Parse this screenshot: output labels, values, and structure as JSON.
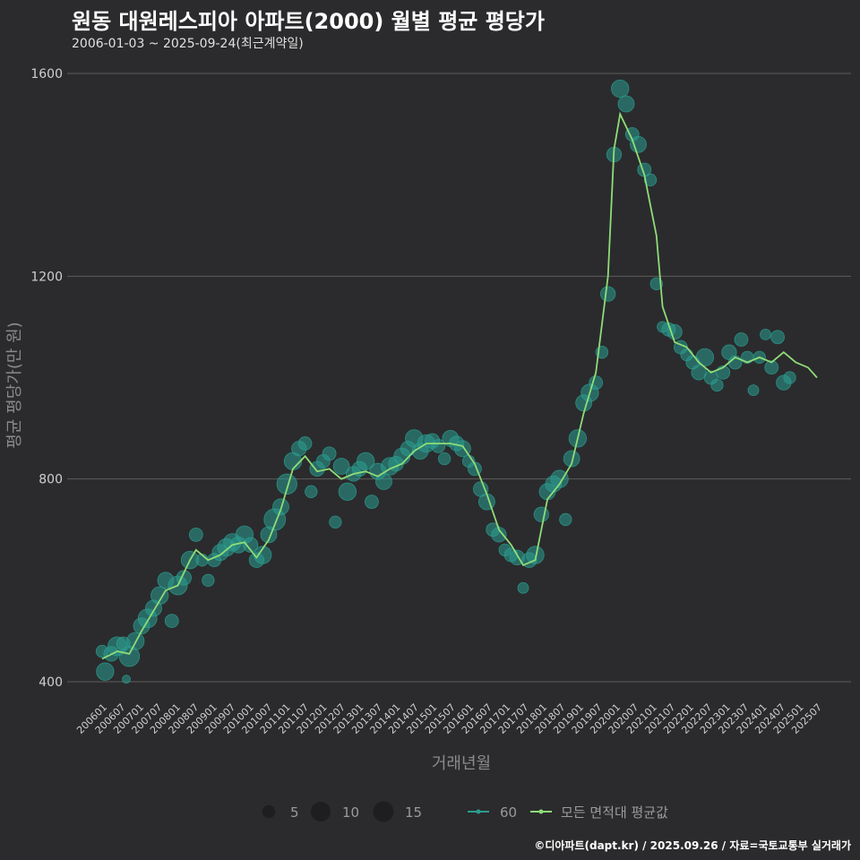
{
  "title": "원동 대원레스피아 아파트(2000) 월별 평균 평당가",
  "subtitle": "2006-01-03 ~ 2025-09-24(최근계약일)",
  "footer": "©디아파트(dapt.kr) / 2025.09.26 / 자료=국토교통부 실거래가",
  "colors": {
    "background": "#2b2b2d",
    "grid": "#5c5c5c",
    "bubble": "#2a9d8f",
    "line": "#8fdc78"
  },
  "chart_data": {
    "type": "scatter",
    "xlabel": "거래년월",
    "ylabel": "평균 평당가(만 원)",
    "ylim": [
      370,
      1640
    ],
    "yticks": [
      400,
      800,
      1200,
      1600
    ],
    "x_tick_labels": [
      "200601",
      "200607",
      "200701",
      "200707",
      "200801",
      "200807",
      "200901",
      "200907",
      "201001",
      "201007",
      "201101",
      "201107",
      "201201",
      "201207",
      "201301",
      "201307",
      "201401",
      "201407",
      "201501",
      "201507",
      "201601",
      "201607",
      "201701",
      "201707",
      "201801",
      "201807",
      "201901",
      "201907",
      "202001",
      "202007",
      "202101",
      "202107",
      "202201",
      "202207",
      "202301",
      "202307",
      "202401",
      "202407",
      "202501",
      "202507"
    ],
    "grid": "horizontal",
    "legend": {
      "size_title": "",
      "sizes": [
        5,
        10,
        15
      ],
      "series_labels": [
        "60",
        "모든 면적대 평균값"
      ],
      "placement": "bottom"
    },
    "series": [
      {
        "name": "60",
        "type": "bubble",
        "points": [
          [
            "2006-01",
            460,
            5
          ],
          [
            "2006-02",
            420,
            9
          ],
          [
            "2006-04",
            455,
            7
          ],
          [
            "2006-06",
            470,
            10
          ],
          [
            "2006-08",
            475,
            6
          ],
          [
            "2006-09",
            405,
            2
          ],
          [
            "2006-10",
            450,
            11
          ],
          [
            "2006-12",
            480,
            9
          ],
          [
            "2007-02",
            510,
            8
          ],
          [
            "2007-04",
            525,
            10
          ],
          [
            "2007-06",
            545,
            8
          ],
          [
            "2007-08",
            570,
            9
          ],
          [
            "2007-10",
            600,
            8
          ],
          [
            "2007-12",
            520,
            6
          ],
          [
            "2008-02",
            590,
            10
          ],
          [
            "2008-04",
            605,
            7
          ],
          [
            "2008-06",
            640,
            9
          ],
          [
            "2008-08",
            690,
            6
          ],
          [
            "2008-10",
            640,
            5
          ],
          [
            "2008-12",
            600,
            5
          ],
          [
            "2009-02",
            640,
            6
          ],
          [
            "2009-04",
            655,
            8
          ],
          [
            "2009-06",
            665,
            9
          ],
          [
            "2009-08",
            675,
            9
          ],
          [
            "2009-10",
            670,
            8
          ],
          [
            "2009-12",
            690,
            9
          ],
          [
            "2010-02",
            670,
            7
          ],
          [
            "2010-04",
            640,
            7
          ],
          [
            "2010-06",
            650,
            9
          ],
          [
            "2010-08",
            690,
            8
          ],
          [
            "2010-10",
            720,
            12
          ],
          [
            "2010-12",
            745,
            8
          ],
          [
            "2011-02",
            790,
            11
          ],
          [
            "2011-04",
            835,
            9
          ],
          [
            "2011-06",
            860,
            7
          ],
          [
            "2011-08",
            870,
            6
          ],
          [
            "2011-10",
            775,
            5
          ],
          [
            "2011-12",
            820,
            7
          ],
          [
            "2012-02",
            835,
            6
          ],
          [
            "2012-04",
            850,
            6
          ],
          [
            "2012-06",
            715,
            5
          ],
          [
            "2012-08",
            825,
            8
          ],
          [
            "2012-10",
            775,
            9
          ],
          [
            "2012-12",
            810,
            7
          ],
          [
            "2013-02",
            820,
            7
          ],
          [
            "2013-04",
            835,
            9
          ],
          [
            "2013-06",
            755,
            6
          ],
          [
            "2013-08",
            815,
            8
          ],
          [
            "2013-10",
            795,
            8
          ],
          [
            "2013-12",
            825,
            9
          ],
          [
            "2014-02",
            830,
            7
          ],
          [
            "2014-04",
            845,
            8
          ],
          [
            "2014-06",
            860,
            7
          ],
          [
            "2014-08",
            880,
            9
          ],
          [
            "2014-10",
            855,
            8
          ],
          [
            "2014-12",
            870,
            9
          ],
          [
            "2015-02",
            875,
            7
          ],
          [
            "2015-04",
            865,
            6
          ],
          [
            "2015-06",
            840,
            5
          ],
          [
            "2015-08",
            880,
            8
          ],
          [
            "2015-10",
            870,
            7
          ],
          [
            "2015-12",
            860,
            8
          ],
          [
            "2016-02",
            835,
            5
          ],
          [
            "2016-04",
            820,
            6
          ],
          [
            "2016-06",
            780,
            7
          ],
          [
            "2016-08",
            755,
            8
          ],
          [
            "2016-10",
            700,
            6
          ],
          [
            "2016-12",
            690,
            7
          ],
          [
            "2017-02",
            660,
            5
          ],
          [
            "2017-04",
            650,
            6
          ],
          [
            "2017-06",
            645,
            7
          ],
          [
            "2017-08",
            585,
            4
          ],
          [
            "2017-10",
            640,
            7
          ],
          [
            "2017-12",
            650,
            9
          ],
          [
            "2018-02",
            730,
            7
          ],
          [
            "2018-04",
            775,
            8
          ],
          [
            "2018-06",
            790,
            8
          ],
          [
            "2018-08",
            800,
            9
          ],
          [
            "2018-10",
            720,
            5
          ],
          [
            "2018-12",
            840,
            8
          ],
          [
            "2019-02",
            880,
            9
          ],
          [
            "2019-04",
            950,
            8
          ],
          [
            "2019-06",
            970,
            9
          ],
          [
            "2019-08",
            990,
            6
          ],
          [
            "2019-10",
            1050,
            5
          ],
          [
            "2019-12",
            1165,
            7
          ],
          [
            "2020-02",
            1440,
            7
          ],
          [
            "2020-04",
            1570,
            9
          ],
          [
            "2020-06",
            1540,
            8
          ],
          [
            "2020-08",
            1480,
            6
          ],
          [
            "2020-10",
            1460,
            8
          ],
          [
            "2020-12",
            1410,
            6
          ],
          [
            "2021-02",
            1390,
            5
          ],
          [
            "2021-04",
            1185,
            5
          ],
          [
            "2021-06",
            1100,
            4
          ],
          [
            "2021-08",
            1095,
            6
          ],
          [
            "2021-10",
            1090,
            7
          ],
          [
            "2021-12",
            1060,
            6
          ],
          [
            "2022-02",
            1045,
            5
          ],
          [
            "2022-04",
            1030,
            6
          ],
          [
            "2022-06",
            1010,
            7
          ],
          [
            "2022-08",
            1040,
            9
          ],
          [
            "2022-10",
            1000,
            6
          ],
          [
            "2022-12",
            985,
            5
          ],
          [
            "2023-02",
            1010,
            6
          ],
          [
            "2023-04",
            1050,
            7
          ],
          [
            "2023-06",
            1030,
            6
          ],
          [
            "2023-08",
            1075,
            6
          ],
          [
            "2023-10",
            1040,
            5
          ],
          [
            "2023-12",
            975,
            4
          ],
          [
            "2024-02",
            1040,
            5
          ],
          [
            "2024-04",
            1085,
            4
          ],
          [
            "2024-06",
            1020,
            6
          ],
          [
            "2024-08",
            1080,
            6
          ],
          [
            "2024-10",
            990,
            7
          ],
          [
            "2024-12",
            1000,
            5
          ]
        ]
      },
      {
        "name": "모든 면적대 평균값",
        "type": "line",
        "points": [
          [
            "2006-01",
            445
          ],
          [
            "2006-06",
            460
          ],
          [
            "2006-10",
            455
          ],
          [
            "2007-02",
            500
          ],
          [
            "2007-06",
            540
          ],
          [
            "2007-10",
            580
          ],
          [
            "2008-02",
            590
          ],
          [
            "2008-06",
            640
          ],
          [
            "2008-08",
            660
          ],
          [
            "2008-12",
            640
          ],
          [
            "2009-04",
            650
          ],
          [
            "2009-08",
            670
          ],
          [
            "2009-12",
            675
          ],
          [
            "2010-04",
            645
          ],
          [
            "2010-08",
            680
          ],
          [
            "2010-12",
            740
          ],
          [
            "2011-04",
            820
          ],
          [
            "2011-08",
            845
          ],
          [
            "2011-12",
            815
          ],
          [
            "2012-04",
            820
          ],
          [
            "2012-08",
            800
          ],
          [
            "2012-12",
            810
          ],
          [
            "2013-04",
            815
          ],
          [
            "2013-08",
            805
          ],
          [
            "2013-12",
            820
          ],
          [
            "2014-04",
            830
          ],
          [
            "2014-08",
            855
          ],
          [
            "2014-12",
            870
          ],
          [
            "2015-04",
            870
          ],
          [
            "2015-08",
            870
          ],
          [
            "2015-12",
            865
          ],
          [
            "2016-04",
            830
          ],
          [
            "2016-08",
            770
          ],
          [
            "2016-12",
            700
          ],
          [
            "2017-04",
            670
          ],
          [
            "2017-08",
            630
          ],
          [
            "2017-12",
            640
          ],
          [
            "2018-04",
            760
          ],
          [
            "2018-08",
            790
          ],
          [
            "2018-12",
            830
          ],
          [
            "2019-04",
            930
          ],
          [
            "2019-08",
            1010
          ],
          [
            "2019-12",
            1200
          ],
          [
            "2020-02",
            1450
          ],
          [
            "2020-04",
            1520
          ],
          [
            "2020-08",
            1470
          ],
          [
            "2020-12",
            1400
          ],
          [
            "2021-02",
            1340
          ],
          [
            "2021-04",
            1280
          ],
          [
            "2021-06",
            1140
          ],
          [
            "2021-10",
            1070
          ],
          [
            "2022-02",
            1060
          ],
          [
            "2022-06",
            1030
          ],
          [
            "2022-10",
            1010
          ],
          [
            "2023-02",
            1020
          ],
          [
            "2023-06",
            1040
          ],
          [
            "2023-10",
            1030
          ],
          [
            "2024-02",
            1040
          ],
          [
            "2024-06",
            1030
          ],
          [
            "2024-10",
            1050
          ],
          [
            "2025-02",
            1030
          ],
          [
            "2025-06",
            1020
          ],
          [
            "2025-09",
            1000
          ]
        ]
      }
    ]
  }
}
